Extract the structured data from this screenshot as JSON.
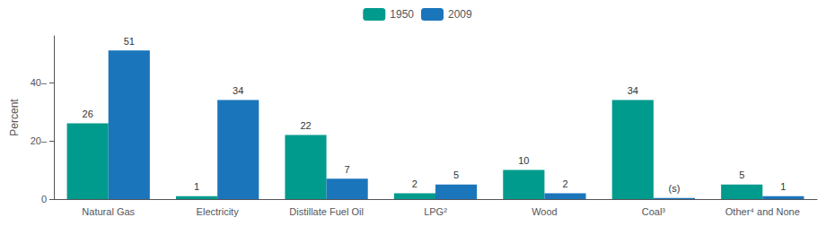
{
  "chart_data": {
    "type": "bar",
    "categories": [
      "Natural Gas",
      "Electricity",
      "Distillate Fuel Oil",
      "LPG²",
      "Wood",
      "Coal³",
      "Other⁴ and None"
    ],
    "series": [
      {
        "name": "1950",
        "color": "#009B8D",
        "values": [
          26,
          1,
          22,
          2,
          10,
          34,
          5
        ],
        "value_labels": [
          "26",
          "1",
          "22",
          "2",
          "10",
          "34",
          "5"
        ]
      },
      {
        "name": "2009",
        "color": "#1B75BB",
        "values": [
          51,
          34,
          7,
          5,
          2,
          0.4,
          1
        ],
        "value_labels": [
          "51",
          "34",
          "7",
          "5",
          "2",
          "(s)",
          "1"
        ]
      }
    ],
    "ylabel": "Percent",
    "ylim": [
      0,
      56
    ],
    "yticks": [
      0,
      {
        "value": 20,
        "label": "20–"
      },
      {
        "value": 40,
        "label": "40–"
      }
    ],
    "grid": false,
    "legend": "top",
    "data_labels": true
  }
}
